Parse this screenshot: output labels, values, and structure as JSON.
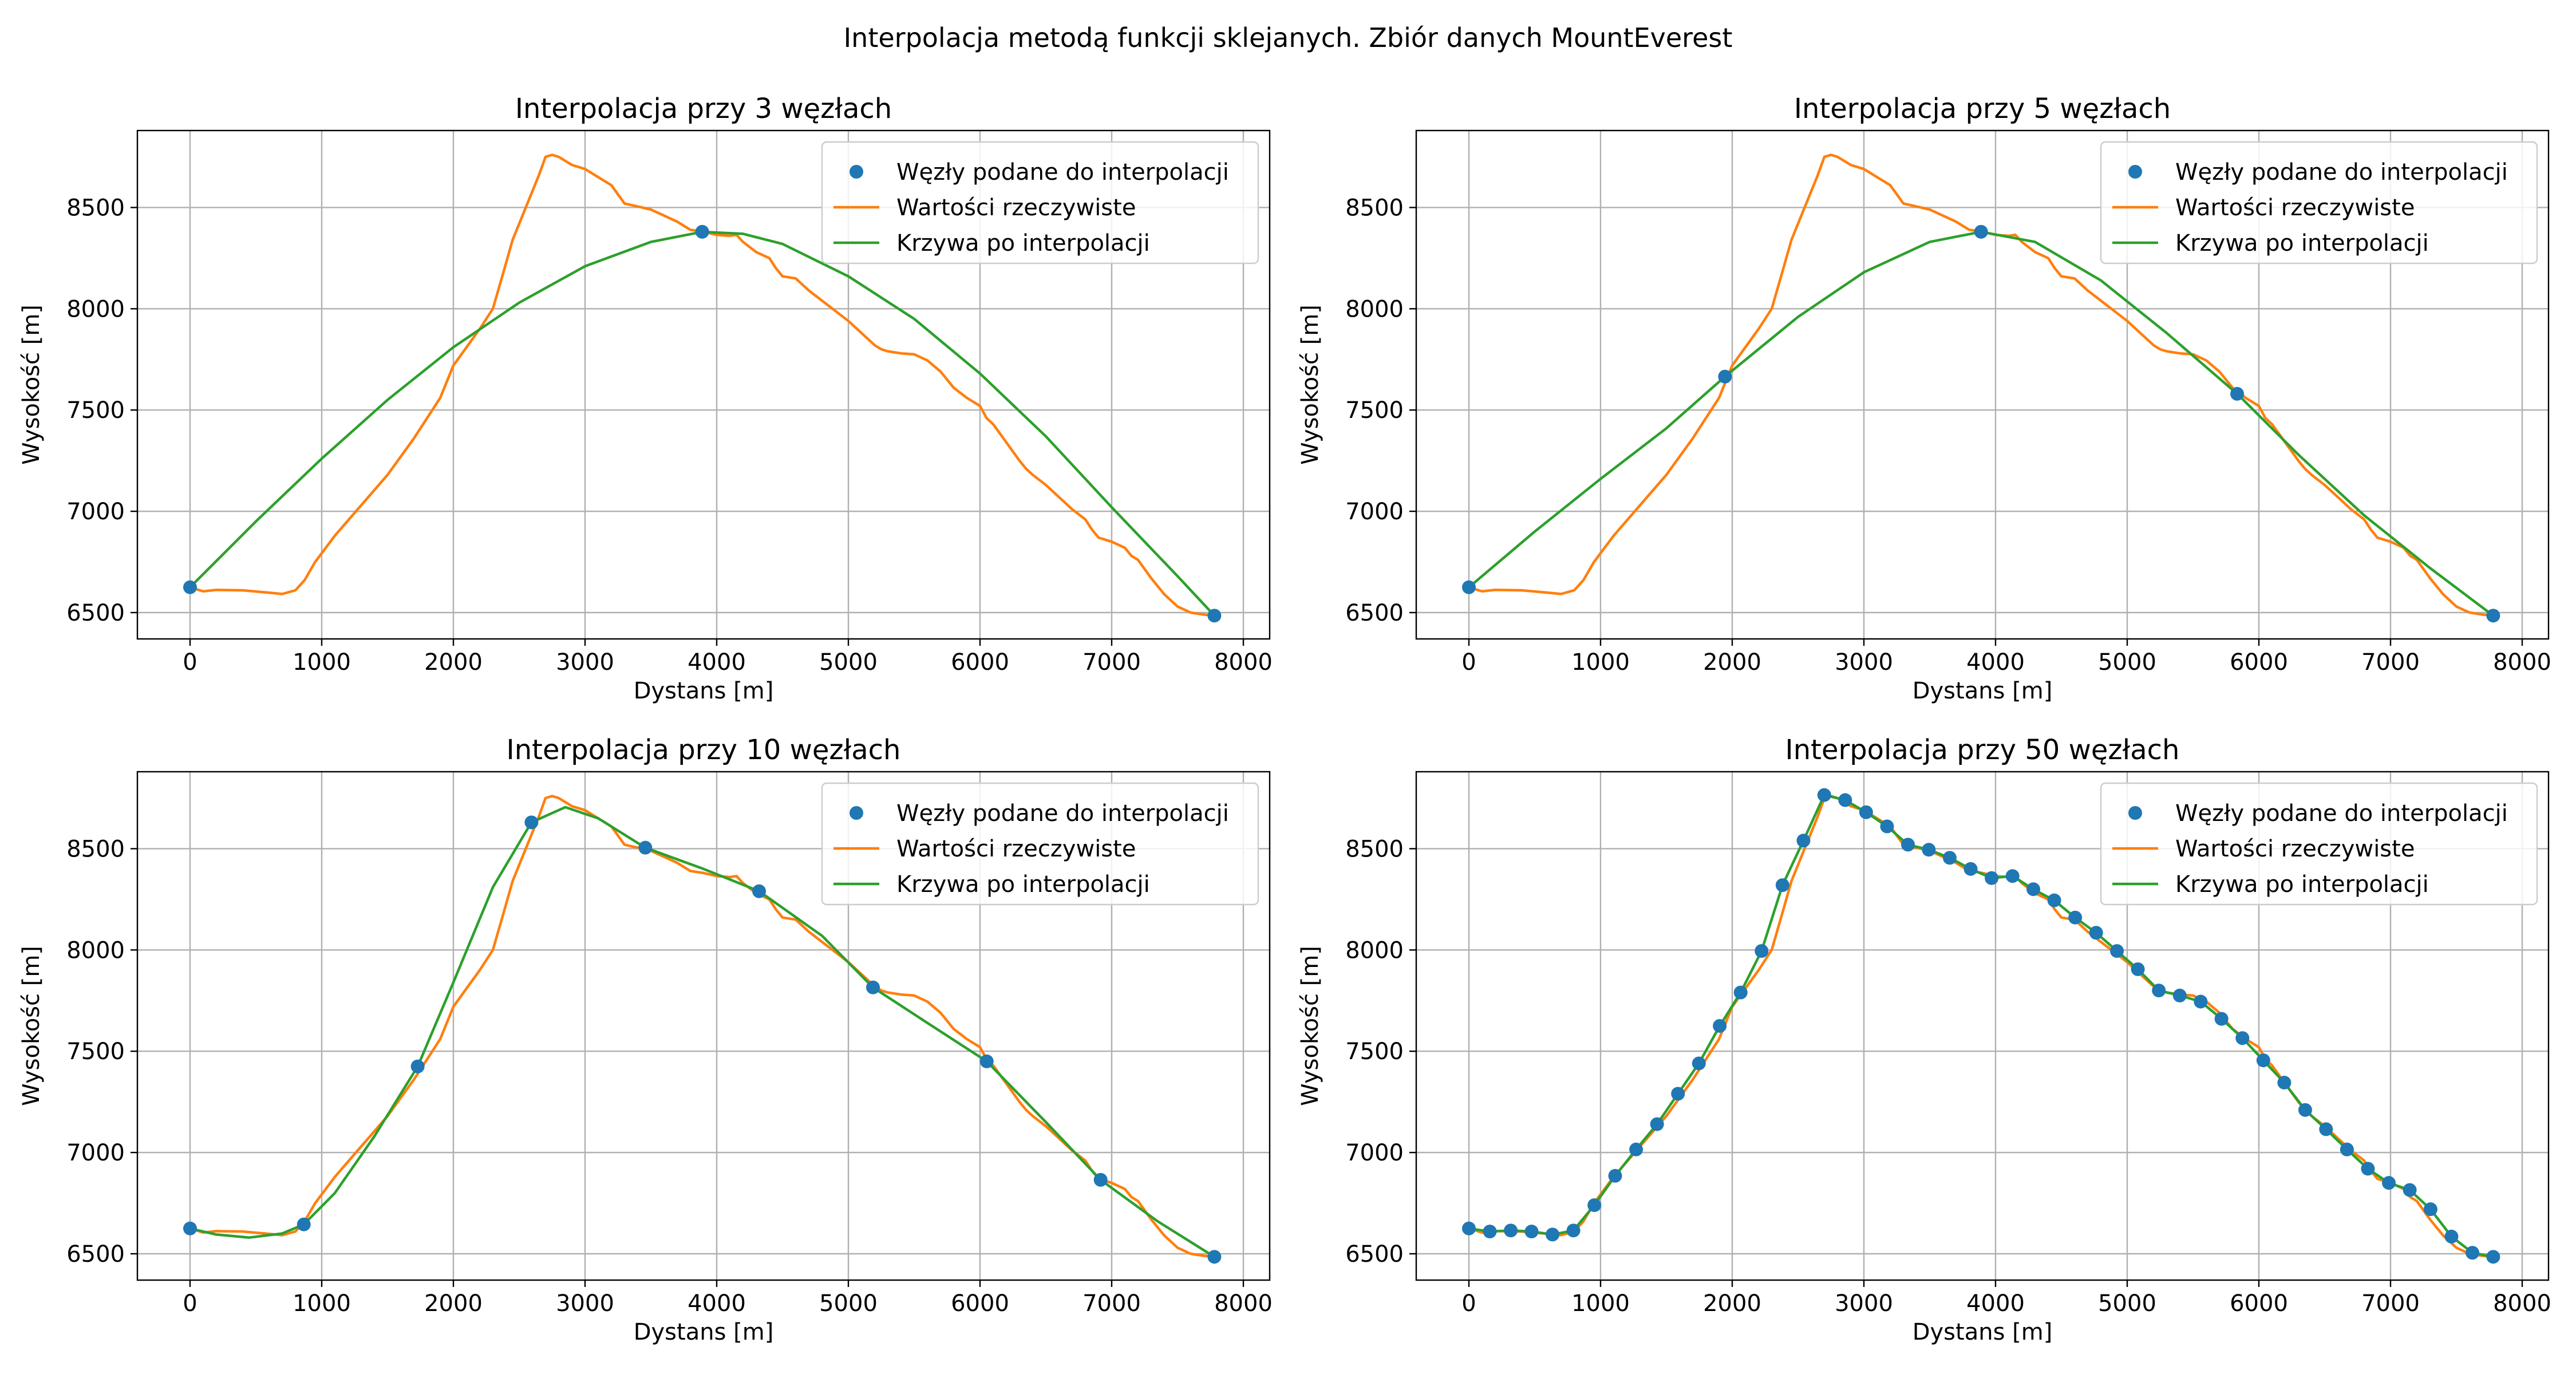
{
  "figure": {
    "suptitle": "Interpolacja metodą funkcji sklejanych. Zbiór danych MountEverest"
  },
  "colors": {
    "nodes": "#1f77b4",
    "actual": "#ff7f0e",
    "interp": "#2ca02c",
    "grid": "#b0b0b0",
    "axes": "#000000"
  },
  "chart_data": [
    {
      "type": "line",
      "title": "Interpolacja przy 3 węzłach",
      "xlabel": "Dystans [m]",
      "ylabel": "Wysokość [m]",
      "xlim": [
        -400,
        8200
      ],
      "ylim": [
        6370,
        8880
      ],
      "xticks": [
        0,
        1000,
        2000,
        3000,
        4000,
        5000,
        6000,
        7000,
        8000
      ],
      "yticks": [
        6500,
        7000,
        7500,
        8000,
        8500
      ],
      "grid": true,
      "legend_position": "top-right",
      "legend": [
        "Węzły podane do interpolacji",
        "Wartości rzeczywiste",
        "Krzywa po interpolacji"
      ],
      "series": [
        {
          "name": "Węzły podane do interpolacji",
          "kind": "markers",
          "x": [
            0,
            3890,
            7780
          ],
          "y": [
            6625,
            8380,
            6485
          ]
        },
        {
          "name": "Krzywa po interpolacji",
          "kind": "line",
          "x": [
            0,
            500,
            1000,
            1500,
            2000,
            2500,
            3000,
            3500,
            3890,
            4200,
            4500,
            5000,
            5500,
            6000,
            6500,
            7000,
            7500,
            7780
          ],
          "y": [
            6625,
            6950,
            7260,
            7550,
            7810,
            8030,
            8210,
            8330,
            8380,
            8370,
            8320,
            8160,
            7950,
            7680,
            7370,
            7020,
            6680,
            6485
          ]
        }
      ]
    },
    {
      "type": "line",
      "title": "Interpolacja przy 5 węzłach",
      "xlabel": "Dystans [m]",
      "ylabel": "Wysokość [m]",
      "xlim": [
        -400,
        8200
      ],
      "ylim": [
        6370,
        8880
      ],
      "xticks": [
        0,
        1000,
        2000,
        3000,
        4000,
        5000,
        6000,
        7000,
        8000
      ],
      "yticks": [
        6500,
        7000,
        7500,
        8000,
        8500
      ],
      "grid": true,
      "legend_position": "top-right",
      "legend": [
        "Węzły podane do interpolacji",
        "Wartości rzeczywiste",
        "Krzywa po interpolacji"
      ],
      "series": [
        {
          "name": "Węzły podane do interpolacji",
          "kind": "markers",
          "x": [
            0,
            1945,
            3890,
            5835,
            7780
          ],
          "y": [
            6625,
            7665,
            8380,
            7580,
            6485
          ]
        },
        {
          "name": "Krzywa po interpolacji",
          "kind": "line",
          "x": [
            0,
            500,
            1000,
            1500,
            1945,
            2500,
            3000,
            3500,
            3890,
            4300,
            4800,
            5300,
            5835,
            6300,
            6800,
            7300,
            7780
          ],
          "y": [
            6625,
            6900,
            7160,
            7410,
            7665,
            7960,
            8180,
            8330,
            8380,
            8330,
            8140,
            7880,
            7580,
            7280,
            6980,
            6720,
            6485
          ]
        }
      ]
    },
    {
      "type": "line",
      "title": "Interpolacja przy 10 węzłach",
      "xlabel": "Dystans [m]",
      "ylabel": "Wysokość [m]",
      "xlim": [
        -400,
        8200
      ],
      "ylim": [
        6370,
        8880
      ],
      "xticks": [
        0,
        1000,
        2000,
        3000,
        4000,
        5000,
        6000,
        7000,
        8000
      ],
      "yticks": [
        6500,
        7000,
        7500,
        8000,
        8500
      ],
      "grid": true,
      "legend_position": "top-right",
      "legend": [
        "Węzły podane do interpolacji",
        "Wartości rzeczywiste",
        "Krzywa po interpolacji"
      ],
      "series": [
        {
          "name": "Węzły podane do interpolacji",
          "kind": "markers",
          "x": [
            0,
            864,
            1729,
            2593,
            3458,
            4322,
            5187,
            6051,
            6916,
            7780
          ],
          "y": [
            6625,
            6645,
            7425,
            8630,
            8505,
            8290,
            7815,
            7450,
            6865,
            6485
          ]
        },
        {
          "name": "Krzywa po interpolacji",
          "kind": "line",
          "x": [
            0,
            200,
            450,
            700,
            864,
            1100,
            1400,
            1729,
            2000,
            2300,
            2593,
            2850,
            3100,
            3458,
            3900,
            4322,
            4800,
            5187,
            5600,
            6051,
            6500,
            6916,
            7350,
            7780
          ],
          "y": [
            6625,
            6595,
            6580,
            6600,
            6645,
            6800,
            7080,
            7425,
            7840,
            8310,
            8630,
            8705,
            8650,
            8505,
            8400,
            8290,
            8070,
            7815,
            7640,
            7450,
            7150,
            6865,
            6660,
            6485
          ]
        }
      ]
    },
    {
      "type": "line",
      "title": "Interpolacja przy 50 węzłach",
      "xlabel": "Dystans [m]",
      "ylabel": "Wysokość [m]",
      "xlim": [
        -400,
        8200
      ],
      "ylim": [
        6370,
        8880
      ],
      "xticks": [
        0,
        1000,
        2000,
        3000,
        4000,
        5000,
        6000,
        7000,
        8000
      ],
      "yticks": [
        6500,
        7000,
        7500,
        8000,
        8500
      ],
      "grid": true,
      "legend_position": "top-right",
      "legend": [
        "Węzły podane do interpolacji",
        "Wartości rzeczywiste",
        "Krzywa po interpolacji"
      ],
      "series": [
        {
          "name": "Węzły podane do interpolacji",
          "kind": "markers",
          "x": [
            0,
            159,
            318,
            476,
            635,
            794,
            953,
            1111,
            1270,
            1429,
            1588,
            1747,
            1905,
            2064,
            2223,
            2382,
            2541,
            2699,
            2858,
            3017,
            3176,
            3335,
            3493,
            3652,
            3811,
            3970,
            4129,
            4287,
            4446,
            4605,
            4764,
            4922,
            5081,
            5240,
            5399,
            5558,
            5716,
            5875,
            6034,
            6193,
            6352,
            6510,
            6669,
            6828,
            6987,
            7146,
            7304,
            7463,
            7622,
            7780
          ],
          "y": [
            6625,
            6610,
            6615,
            6610,
            6595,
            6615,
            6740,
            6885,
            7015,
            7140,
            7290,
            7440,
            7625,
            7790,
            7995,
            8320,
            8540,
            8765,
            8740,
            8680,
            8610,
            8520,
            8495,
            8455,
            8400,
            8355,
            8365,
            8300,
            8245,
            8160,
            8085,
            7995,
            7905,
            7800,
            7775,
            7745,
            7660,
            7565,
            7455,
            7345,
            7210,
            7115,
            7015,
            6920,
            6850,
            6815,
            6720,
            6585,
            6505,
            6485
          ]
        },
        {
          "name": "Krzywa po interpolacji",
          "kind": "line",
          "same_as_actual": true
        }
      ]
    }
  ],
  "actual_profile": {
    "name": "Wartości rzeczywiste",
    "x": [
      0,
      100,
      200,
      400,
      600,
      700,
      800,
      870,
      950,
      1100,
      1300,
      1500,
      1700,
      1900,
      2000,
      2100,
      2200,
      2300,
      2380,
      2450,
      2550,
      2650,
      2700,
      2750,
      2800,
      2900,
      3000,
      3100,
      3200,
      3300,
      3400,
      3500,
      3600,
      3700,
      3800,
      3900,
      4000,
      4100,
      4150,
      4200,
      4300,
      4400,
      4450,
      4500,
      4600,
      4700,
      4800,
      4900,
      5000,
      5100,
      5200,
      5250,
      5300,
      5400,
      5500,
      5600,
      5700,
      5800,
      5900,
      6000,
      6050,
      6100,
      6200,
      6300,
      6350,
      6400,
      6500,
      6600,
      6700,
      6800,
      6850,
      6900,
      7000,
      7100,
      7150,
      7200,
      7300,
      7400,
      7500,
      7600,
      7700,
      7780
    ],
    "y": [
      6625,
      6605,
      6612,
      6610,
      6598,
      6592,
      6610,
      6660,
      6750,
      6880,
      7030,
      7180,
      7360,
      7560,
      7720,
      7810,
      7900,
      8000,
      8180,
      8340,
      8500,
      8660,
      8750,
      8760,
      8750,
      8710,
      8690,
      8650,
      8610,
      8520,
      8505,
      8490,
      8460,
      8430,
      8390,
      8380,
      8365,
      8360,
      8365,
      8330,
      8280,
      8250,
      8200,
      8160,
      8150,
      8090,
      8040,
      7990,
      7940,
      7880,
      7820,
      7800,
      7790,
      7780,
      7775,
      7745,
      7690,
      7610,
      7560,
      7520,
      7460,
      7430,
      7340,
      7250,
      7210,
      7180,
      7130,
      7070,
      7010,
      6960,
      6910,
      6870,
      6850,
      6820,
      6780,
      6760,
      6670,
      6590,
      6530,
      6500,
      6490,
      6485
    ]
  }
}
